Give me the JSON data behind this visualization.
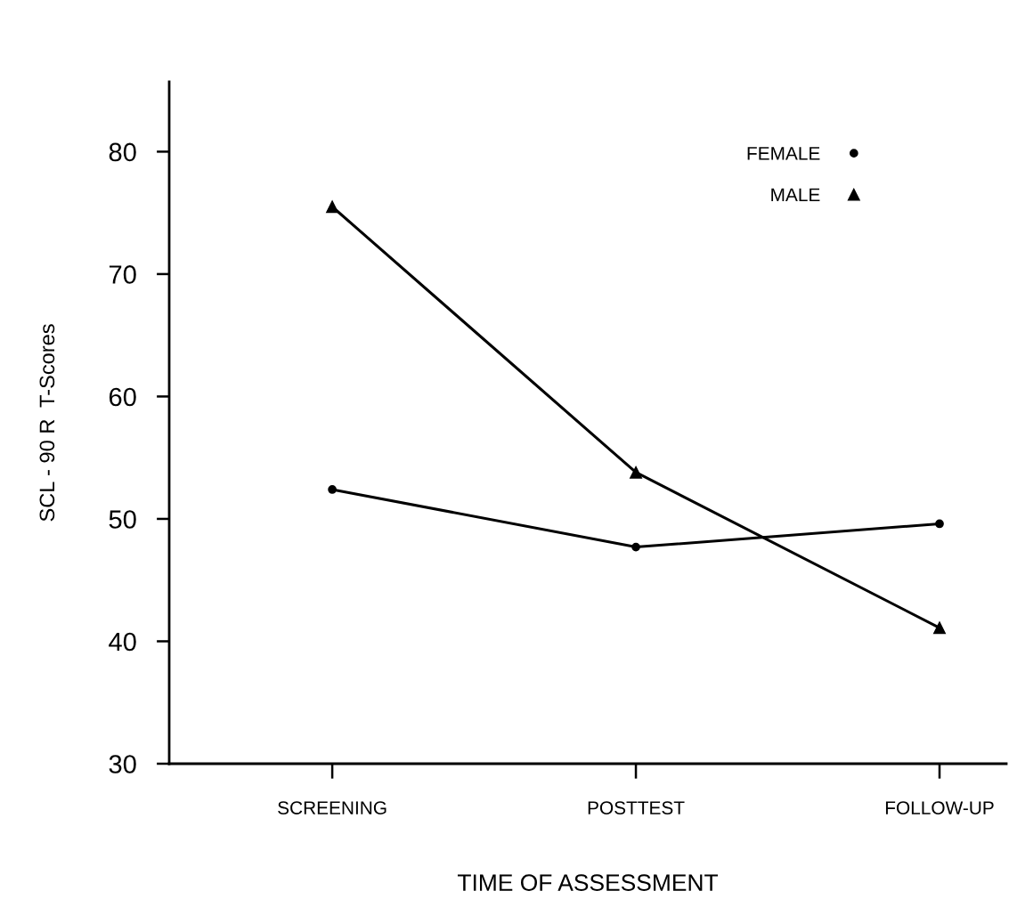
{
  "chart_data": {
    "type": "line",
    "xlabel": "TIME OF ASSESSMENT",
    "ylabel": "SCL - 90 R  T-Scores",
    "categories": [
      "SCREENING",
      "POSTTEST",
      "FOLLOW-UP"
    ],
    "series": [
      {
        "name": "FEMALE",
        "color": "#000000",
        "marker": "circle",
        "values": [
          52.4,
          47.7,
          49.6
        ]
      },
      {
        "name": "MALE",
        "color": "#000000",
        "marker": "triangle",
        "values": [
          75.5,
          53.8,
          41.1
        ]
      }
    ],
    "ylim": [
      30,
      85.7
    ],
    "yticks": [
      30,
      40,
      50,
      60,
      70,
      80
    ],
    "grid": false,
    "legend": "top right",
    "line_style": "solid"
  }
}
